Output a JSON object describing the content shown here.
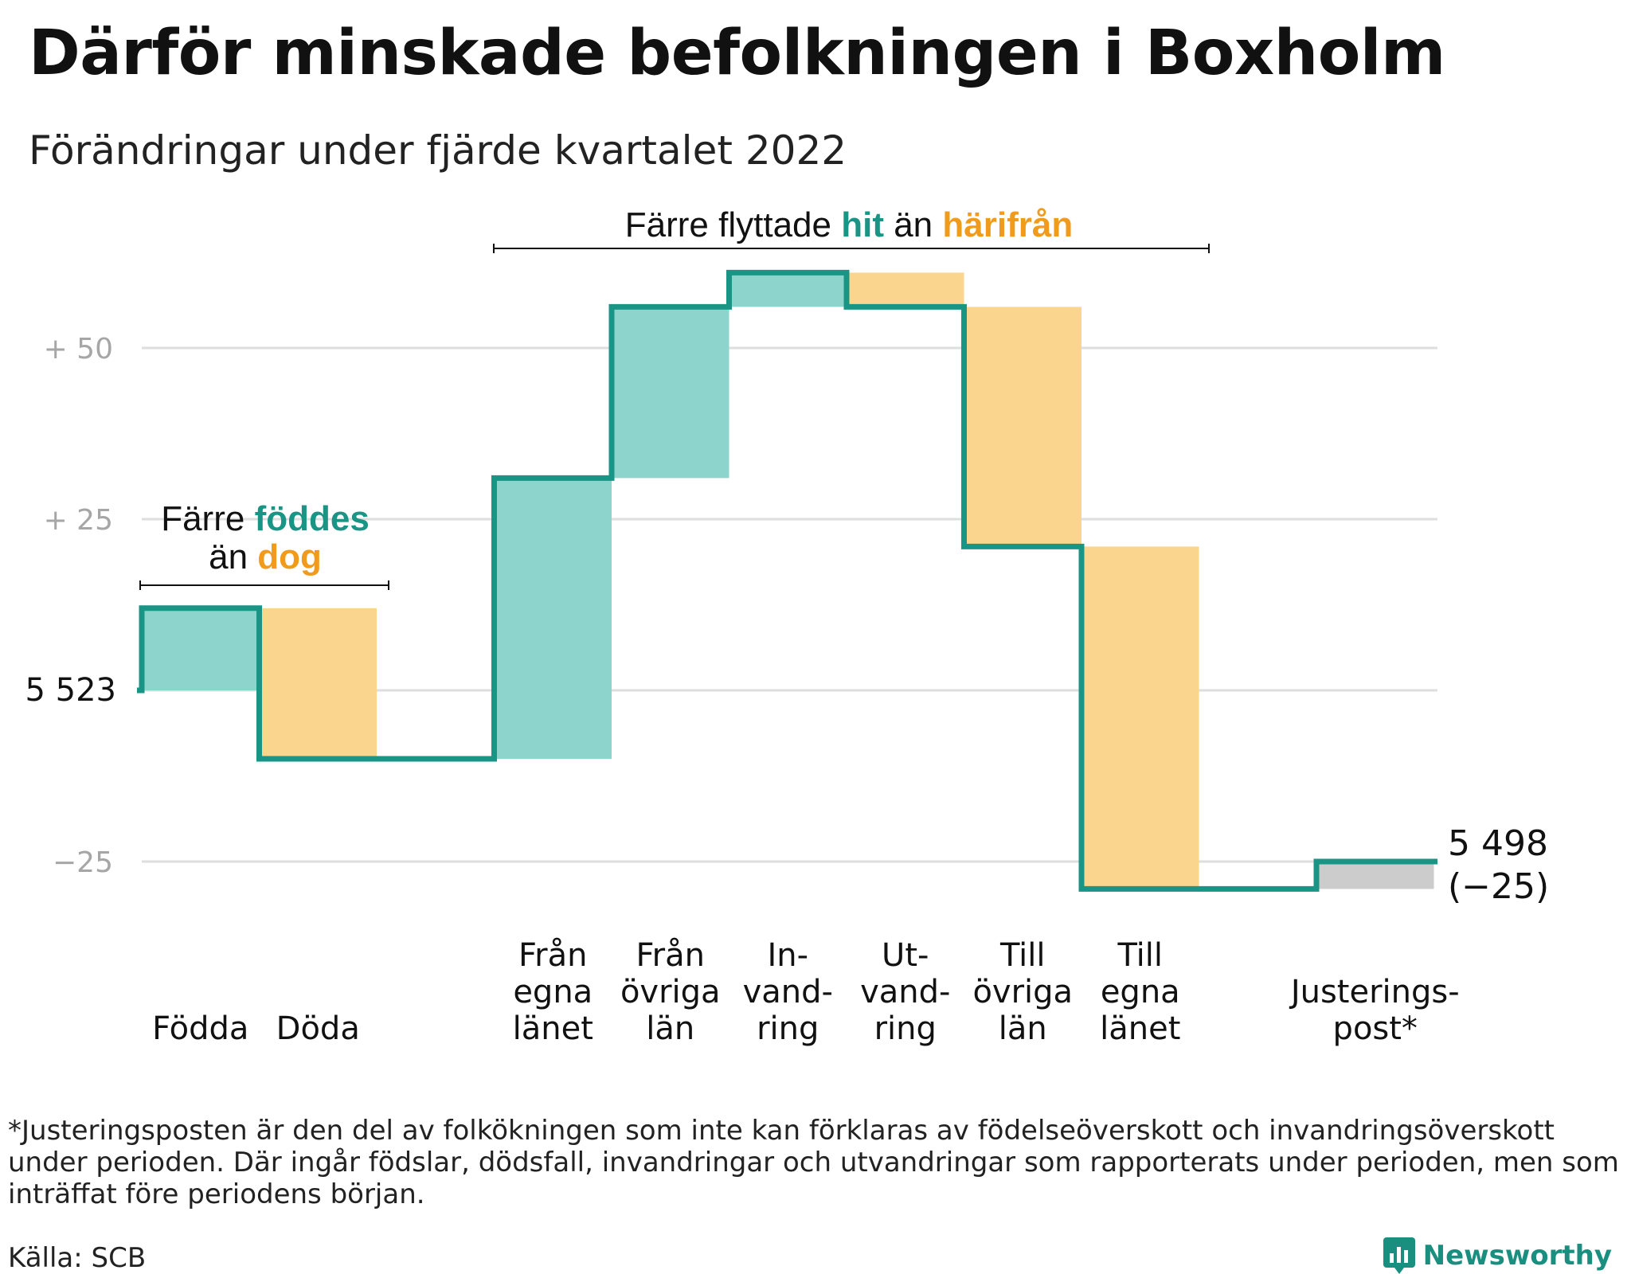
{
  "title": "Därför minskade befolkningen i Boxholm",
  "subtitle": "Förändringar under fjärde kvartalet 2022",
  "colors": {
    "inflow": "#8dd5cc",
    "outflow": "#fad58d",
    "adjustment": "#cccccc",
    "line": "#1a9585",
    "teal_text": "#1a9585",
    "orange_text": "#f19b1d",
    "grid": "#dedede",
    "tick": "#a6a6a6"
  },
  "chart_data": {
    "type": "waterfall",
    "title": "Därför minskade befolkningen i Boxholm",
    "subtitle": "Förändringar under fjärde kvartalet 2022",
    "baseline": 5523,
    "final_value": 5498,
    "final_label": "5 498",
    "final_change_label": "(−25)",
    "start_label": "5 523",
    "y_range": [
      -32,
      64
    ],
    "yticks": [
      {
        "value": 50,
        "label": "+ 50"
      },
      {
        "value": 25,
        "label": "+ 25"
      },
      {
        "value": 0,
        "label": "5 523"
      },
      {
        "value": -25,
        "label": "−25"
      }
    ],
    "grid": true,
    "categories": [
      {
        "label": [
          "Födda"
        ],
        "value": 12,
        "kind": "inflow"
      },
      {
        "label": [
          "Döda"
        ],
        "value": -22,
        "kind": "outflow"
      },
      {
        "label": [],
        "value": 0,
        "kind": "gap"
      },
      {
        "label": [
          "Från",
          "egna",
          "länet"
        ],
        "value": 41,
        "kind": "inflow"
      },
      {
        "label": [
          "Från",
          "övriga",
          "län"
        ],
        "value": 25,
        "kind": "inflow"
      },
      {
        "label": [
          "In-",
          "vand-",
          "ring"
        ],
        "value": 5,
        "kind": "inflow"
      },
      {
        "label": [
          "Ut-",
          "vand-",
          "ring"
        ],
        "value": -5,
        "kind": "outflow"
      },
      {
        "label": [
          "Till",
          "övriga",
          "län"
        ],
        "value": -35,
        "kind": "outflow"
      },
      {
        "label": [
          "Till",
          "egna",
          "länet"
        ],
        "value": -50,
        "kind": "outflow"
      },
      {
        "label": [],
        "value": 0,
        "kind": "gap"
      },
      {
        "label": [
          "Justerings-",
          "post*"
        ],
        "value": 4,
        "kind": "adjustment"
      }
    ],
    "annotations": [
      {
        "id": "births",
        "parts": [
          {
            "text": "Färre ",
            "style": "plain"
          },
          {
            "text": "föddes",
            "style": "teal"
          },
          {
            "text": "\n",
            "style": "break"
          },
          {
            "text": "än ",
            "style": "plain"
          },
          {
            "text": "dog",
            "style": "orange"
          }
        ]
      },
      {
        "id": "moves",
        "parts": [
          {
            "text": "Färre flyttade ",
            "style": "plain"
          },
          {
            "text": "hit",
            "style": "teal"
          },
          {
            "text": " än ",
            "style": "plain"
          },
          {
            "text": "härifrån",
            "style": "orange"
          }
        ]
      }
    ]
  },
  "footnote": "*Justeringsposten är den del av folkökningen som inte kan förklaras av födelseöverskott och invandringsöverskott under perioden. Där ingår födslar, dödsfall, invandringar och utvandringar som rapporterats under perioden, men som inträffat före periodens början.",
  "source": "Källa: SCB",
  "brand": {
    "name": "Newsworthy",
    "icon": "newsworthy-logo-icon"
  }
}
